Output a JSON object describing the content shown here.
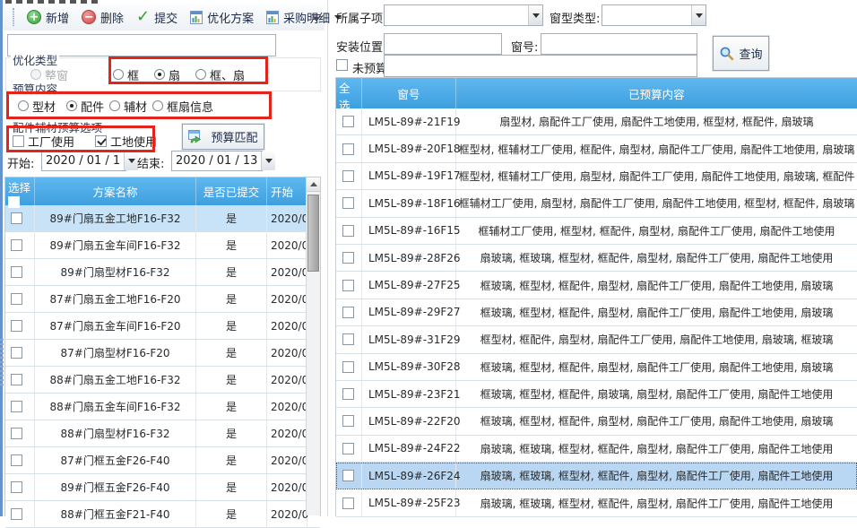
{
  "toolbar": {
    "add": "新增",
    "delete": "删除",
    "submit": "提交",
    "optimize_plan": "优化方案",
    "purchase_detail": "采购明细"
  },
  "left_panel": {
    "scheme_filter_value": "",
    "optimization_type": {
      "label": "优化类型",
      "options": [
        {
          "label": "整窗",
          "selected": false,
          "disabled": true
        },
        {
          "label": "框",
          "selected": false,
          "disabled": false
        },
        {
          "label": "扇",
          "selected": true,
          "disabled": false
        },
        {
          "label": "框、扇",
          "selected": false,
          "disabled": false
        }
      ]
    },
    "budget_content": {
      "label": "预算内容",
      "options": [
        {
          "label": "型材",
          "selected": false,
          "disabled": false
        },
        {
          "label": "配件",
          "selected": true,
          "disabled": false
        },
        {
          "label": "辅材",
          "selected": false,
          "disabled": false
        },
        {
          "label": "框扇信息",
          "selected": false,
          "disabled": false
        }
      ]
    },
    "usage_options": {
      "label": "配件辅材预算选项",
      "checkboxes": [
        {
          "label": "工厂使用",
          "checked": false
        },
        {
          "label": "工地使用",
          "checked": true
        }
      ]
    },
    "match_button": "预算匹配",
    "date_start_label": "开始:",
    "date_start_value": "2020 / 01 / 1",
    "date_end_label": "结束:",
    "date_end_value": "2020 / 01 / 13"
  },
  "scheme_table": {
    "headers": {
      "select": "选择",
      "name": "方案名称",
      "submitted": "是否已提交",
      "start": "开始"
    },
    "rows": [
      {
        "name": "89#门扇五金工地F16-F32",
        "submitted": "是",
        "start": "2020/0",
        "selected": true
      },
      {
        "name": "89#门扇五金车间F16-F32",
        "submitted": "是",
        "start": "2020/0",
        "selected": false
      },
      {
        "name": "89#门扇型材F16-F32",
        "submitted": "是",
        "start": "2020/0",
        "selected": false
      },
      {
        "name": "87#门扇五金工地F16-F20",
        "submitted": "是",
        "start": "2020/0",
        "selected": false
      },
      {
        "name": "87#门扇五金车间F16-F20",
        "submitted": "是",
        "start": "2020/0",
        "selected": false
      },
      {
        "name": "87#门扇型材F16-F20",
        "submitted": "是",
        "start": "2020/0",
        "selected": false
      },
      {
        "name": "88#门扇五金工地F16-F32",
        "submitted": "是",
        "start": "2020/0",
        "selected": false
      },
      {
        "name": "88#门扇五金车间F16-F32",
        "submitted": "是",
        "start": "2020/0",
        "selected": false
      },
      {
        "name": "88#门扇型材F16-F32",
        "submitted": "是",
        "start": "2020/0",
        "selected": false
      },
      {
        "name": "87#门框五金F26-F40",
        "submitted": "是",
        "start": "2020/0",
        "selected": false
      },
      {
        "name": "89#门框五金F26-F40",
        "submitted": "是",
        "start": "2020/0",
        "selected": false
      },
      {
        "name": "88#门框五金F21-F40",
        "submitted": "是",
        "start": "2020/0",
        "selected": false
      }
    ]
  },
  "query_panel": {
    "sub_item_label": "所属子项:",
    "sub_item_value": "",
    "window_type_label": "窗型类型:",
    "window_type_value": "",
    "install_location_label": "安装位置:",
    "install_location_value": "",
    "window_no_label": "窗号:",
    "window_no_value": "",
    "no_budget_label": "未预算:",
    "no_budget_checked": false,
    "no_budget_value": "",
    "query_button": "查询"
  },
  "window_table": {
    "headers": {
      "select_all": "全选",
      "window_no": "窗号",
      "budgeted_content": "已预算内容"
    },
    "rows": [
      {
        "no": "LM5L-89#-21F19",
        "content": "扇型材, 扇配件工厂使用, 扇配件工地使用, 框型材, 框配件, 扇玻璃",
        "selected": false
      },
      {
        "no": "LM5L-89#-20F18",
        "content": "框型材, 框辅材工厂使用, 框配件, 扇型材, 扇配件工厂使用, 扇配件工地使用, 扇玻璃",
        "selected": false
      },
      {
        "no": "LM5L-89#-19F17",
        "content": "框型材, 框辅材工厂使用, 扇型材, 扇配件工厂使用, 扇配件工地使用, 扇玻璃, 框配件",
        "selected": false
      },
      {
        "no": "LM5L-89#-18F16",
        "content": "框辅材工厂使用, 扇型材, 扇配件工厂使用, 扇配件工地使用, 框型材, 框配件, 扇玻璃",
        "selected": false
      },
      {
        "no": "LM5L-89#-16F15",
        "content": "框辅材工厂使用, 框型材, 框配件, 扇型材, 扇配件工厂使用, 扇配件工地使用",
        "selected": false
      },
      {
        "no": "LM5L-89#-28F26",
        "content": "扇玻璃, 框玻璃, 框型材, 框配件, 扇型材, 扇配件工厂使用, 扇配件工地使用",
        "selected": false
      },
      {
        "no": "LM5L-89#-27F25",
        "content": "框玻璃, 框型材, 框配件, 扇型材, 扇配件工厂使用, 扇配件工地使用, 扇玻璃",
        "selected": false
      },
      {
        "no": "LM5L-89#-29F27",
        "content": "框玻璃, 框型材, 框配件, 扇型材, 扇配件工厂使用, 扇配件工地使用, 扇玻璃",
        "selected": false
      },
      {
        "no": "LM5L-89#-31F29",
        "content": "框型材, 框配件, 扇型材, 扇配件工厂使用, 扇配件工地使用, 扇玻璃, 框玻璃",
        "selected": false
      },
      {
        "no": "LM5L-89#-30F28",
        "content": "框玻璃, 框型材, 框配件, 扇型材, 扇配件工厂使用, 扇配件工地使用, 扇玻璃",
        "selected": false
      },
      {
        "no": "LM5L-89#-23F21",
        "content": "框玻璃, 框型材, 框配件, 扇玻璃, 扇型材, 扇配件工厂使用, 扇配件工地使用",
        "selected": false
      },
      {
        "no": "LM5L-89#-22F20",
        "content": "框玻璃, 框型材, 框配件, 扇型材, 扇配件工厂使用, 扇配件工地使用, 扇玻璃",
        "selected": false
      },
      {
        "no": "LM5L-89#-24F22",
        "content": "扇玻璃, 框玻璃, 框型材, 框配件, 扇型材, 扇配件工厂使用, 扇配件工地使用",
        "selected": false
      },
      {
        "no": "LM5L-89#-26F24",
        "content": "扇玻璃, 框玻璃, 框型材, 框配件, 扇型材, 扇配件工厂使用, 扇配件工地使用",
        "selected": true
      },
      {
        "no": "LM5L-89#-25F23",
        "content": "扇玻璃, 框玻璃, 框型材, 框配件, 扇型材, 扇配件工厂使用, 扇配件工地使用",
        "selected": false
      }
    ]
  },
  "colors": {
    "table_header_blue": "#42A5E5",
    "selected_row_blue": "#BDDCF5",
    "annotation_red": "#E1251B"
  }
}
